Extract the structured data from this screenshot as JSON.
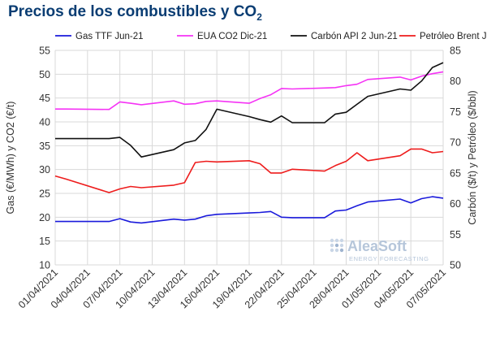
{
  "title": {
    "main": "Precios de los combustibles y CO",
    "sub": "2"
  },
  "chart_data": {
    "type": "line",
    "x": [
      "01/04/2021",
      "02/04/2021",
      "06/04/2021",
      "07/04/2021",
      "08/04/2021",
      "09/04/2021",
      "12/04/2021",
      "13/04/2021",
      "14/04/2021",
      "15/04/2021",
      "16/04/2021",
      "19/04/2021",
      "20/04/2021",
      "21/04/2021",
      "22/04/2021",
      "23/04/2021",
      "26/04/2021",
      "27/04/2021",
      "28/04/2021",
      "29/04/2021",
      "30/04/2021",
      "03/05/2021",
      "04/05/2021",
      "05/05/2021",
      "06/05/2021",
      "07/05/2021"
    ],
    "x_days": [
      1,
      2,
      6,
      7,
      8,
      9,
      12,
      13,
      14,
      15,
      16,
      19,
      20,
      21,
      22,
      23,
      26,
      27,
      28,
      29,
      30,
      33,
      34,
      35,
      36,
      37
    ],
    "xticks": [
      "01/04/2021",
      "04/04/2021",
      "07/04/2021",
      "10/04/2021",
      "13/04/2021",
      "16/04/2021",
      "19/04/2021",
      "22/04/2021",
      "25/04/2021",
      "28/04/2021",
      "01/05/2021",
      "04/05/2021",
      "07/05/2021"
    ],
    "y_left_label": "Gas (€/MWh) y CO2 (€/t)",
    "y_right_label": "Carbón ($/t) y Petróleo ($/bbl)",
    "y_left_lim": [
      10,
      55
    ],
    "y_right_lim": [
      50,
      85
    ],
    "y_left_ticks": [
      "10",
      "15",
      "20",
      "25",
      "30",
      "35",
      "40",
      "45",
      "50",
      "55"
    ],
    "y_right_ticks": [
      "50",
      "55",
      "60",
      "65",
      "70",
      "75",
      "80",
      "85"
    ],
    "grid": true,
    "legend_position": "top",
    "series": [
      {
        "name": "Gas TTF Jun-21",
        "axis": "left",
        "color": "#1a1adb",
        "values": [
          19.1,
          19.1,
          19.1,
          19.7,
          19.0,
          18.8,
          19.6,
          19.4,
          19.6,
          20.3,
          20.6,
          20.9,
          21.0,
          21.2,
          20.0,
          19.9,
          19.9,
          21.3,
          21.5,
          22.4,
          23.2,
          23.8,
          23.0,
          23.9,
          24.3,
          24.0
        ]
      },
      {
        "name": "EUA CO2 Dic-21",
        "axis": "left",
        "color": "#f533f5",
        "values": [
          42.7,
          42.7,
          42.6,
          44.2,
          43.9,
          43.6,
          44.4,
          43.7,
          43.8,
          44.3,
          44.4,
          43.9,
          44.9,
          45.7,
          47.0,
          46.9,
          47.1,
          47.2,
          47.6,
          47.9,
          48.9,
          49.4,
          48.8,
          49.6,
          50.1,
          50.5
        ]
      },
      {
        "name": "Carbón API 2 Jun-21",
        "axis": "right",
        "color": "#111111",
        "values": [
          70.6,
          70.6,
          70.6,
          70.8,
          69.5,
          67.6,
          68.8,
          69.9,
          70.3,
          72.1,
          75.4,
          74.2,
          73.7,
          73.3,
          74.3,
          73.2,
          73.2,
          74.6,
          74.9,
          76.2,
          77.5,
          78.7,
          78.5,
          80.0,
          82.2,
          83.0
        ]
      },
      {
        "name": "Petróleo Brent Jul-21",
        "axis": "right",
        "color": "#ee1c1c",
        "values": [
          64.5,
          64.0,
          61.8,
          62.4,
          62.8,
          62.6,
          63.0,
          63.4,
          66.7,
          66.9,
          66.8,
          67.0,
          66.5,
          65.0,
          65.0,
          65.6,
          65.3,
          66.2,
          66.9,
          68.3,
          67.0,
          67.8,
          68.9,
          68.9,
          68.3,
          68.5
        ]
      }
    ]
  },
  "watermark": {
    "brand": "AleaSoft",
    "tagline": "ENERGY FORECASTING"
  }
}
